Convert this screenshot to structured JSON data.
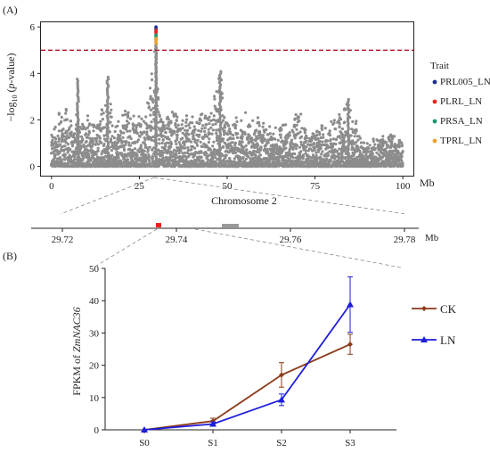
{
  "panel_a": {
    "label": "(A)",
    "ylabel_pre": "−log",
    "ylabel_sub": "10",
    "ylabel_mid": " (",
    "ylabel_ital": "p",
    "ylabel_post": "-value)",
    "xunit": "Mb",
    "xlabel": "Chromosome 2",
    "legend_title": "Trait",
    "colors": {
      "point": "#8c8c8c",
      "threshold": "#b2182b"
    }
  },
  "region": {
    "ticks": [
      "29.72",
      "29.74",
      "29.76",
      "29.78"
    ],
    "unit": "Mb",
    "colors": {
      "snp": "#e8261e",
      "gene": "#9a9a9a"
    }
  },
  "panel_b": {
    "label": "(B)",
    "ylabel_pre": "FPKM of ",
    "ylabel_ital": "ZmNAC36"
  },
  "chart_data": [
    {
      "type": "scatter",
      "subtype": "manhattan",
      "xlabel": "Chromosome 2",
      "xunit": "Mb",
      "ylabel": "−log10 (p-value)",
      "xlim": [
        -3,
        103
      ],
      "ylim": [
        -0.4,
        6.2
      ],
      "xticks": [
        0,
        25,
        50,
        75,
        100
      ],
      "yticks": [
        0,
        2,
        4,
        6
      ],
      "threshold": 5,
      "legend_title": "Trait",
      "legend_position": "right",
      "legend": [
        {
          "name": "PRL005_LN",
          "color": "#1f2f8f"
        },
        {
          "name": "PLRL_LN",
          "color": "#e8261e"
        },
        {
          "name": "PRSA_LN",
          "color": "#1a9a6e"
        },
        {
          "name": "TPRL_LN",
          "color": "#f0a030"
        }
      ],
      "peak": {
        "x": 29.74,
        "points": [
          {
            "trait": "PRL005_LN",
            "y": 6.0
          },
          {
            "trait": "PLRL_LN",
            "y": 5.85
          },
          {
            "trait": "PRSA_LN",
            "y": 5.65
          },
          {
            "trait": "TPRL_LN",
            "y": 5.5
          }
        ]
      },
      "profile": [
        [
          0,
          1.3
        ],
        [
          3,
          2.3
        ],
        [
          6,
          2.1
        ],
        [
          8,
          1.8
        ],
        [
          10,
          2.3
        ],
        [
          12,
          1.6
        ],
        [
          14,
          2.5
        ],
        [
          16,
          2.8
        ],
        [
          18,
          1.9
        ],
        [
          20,
          2.0
        ],
        [
          22,
          2.4
        ],
        [
          24,
          2.0
        ],
        [
          26,
          2.6
        ],
        [
          28,
          3.0
        ],
        [
          29.7,
          5.2
        ],
        [
          31,
          2.2
        ],
        [
          34,
          2.4
        ],
        [
          36,
          2.0
        ],
        [
          38,
          1.9
        ],
        [
          40,
          2.0
        ],
        [
          42,
          2.2
        ],
        [
          44,
          2.0
        ],
        [
          46,
          2.4
        ],
        [
          48,
          4.0
        ],
        [
          50,
          2.1
        ],
        [
          52,
          1.8
        ],
        [
          55,
          2.1
        ],
        [
          58,
          1.8
        ],
        [
          60,
          2.0
        ],
        [
          63,
          1.4
        ],
        [
          65,
          2.1
        ],
        [
          68,
          1.6
        ],
        [
          70,
          2.2
        ],
        [
          73,
          1.6
        ],
        [
          75,
          1.5
        ],
        [
          78,
          1.8
        ],
        [
          80,
          1.7
        ],
        [
          82,
          2.0
        ],
        [
          84,
          2.6
        ],
        [
          85,
          2.9
        ],
        [
          87,
          1.8
        ],
        [
          90,
          1.0
        ],
        [
          93,
          1.2
        ],
        [
          96,
          1.3
        ],
        [
          100,
          1.0
        ]
      ],
      "notable_peaks": [
        [
          7.5,
          3.8
        ],
        [
          16,
          3.9
        ],
        [
          48,
          4.1
        ],
        [
          84.5,
          2.95
        ]
      ]
    },
    {
      "type": "line",
      "x": [
        "S0",
        "S1",
        "S2",
        "S3"
      ],
      "ylabel": "FPKM of ZmNAC36",
      "ylim": [
        0,
        50
      ],
      "yticks": [
        0,
        10,
        20,
        30,
        40,
        50
      ],
      "legend_position": "right",
      "series": [
        {
          "name": "CK",
          "color": "#8b3a1a",
          "marker": "diamond",
          "values": [
            0,
            2.7,
            17,
            26.5
          ],
          "errors": [
            0,
            0.9,
            3.8,
            3.1
          ]
        },
        {
          "name": "LN",
          "color": "#1d1ddc",
          "marker": "triangle",
          "values": [
            0,
            1.8,
            9.3,
            38.8
          ],
          "errors": [
            0,
            0.6,
            1.8,
            8.6
          ]
        }
      ]
    }
  ]
}
